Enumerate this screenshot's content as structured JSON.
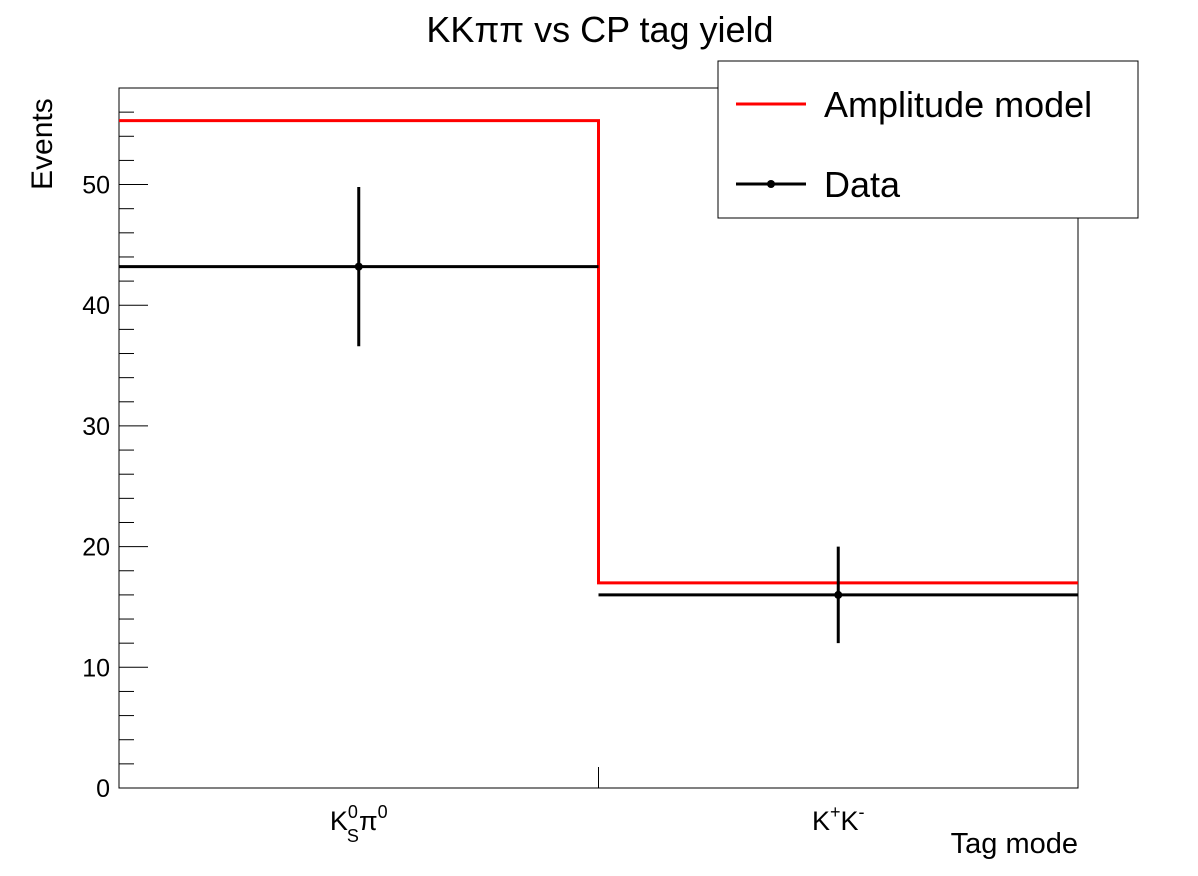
{
  "chart_data": {
    "type": "bar",
    "title": "KKππ vs CP tag yield",
    "xlabel": "Tag mode",
    "ylabel": "Events",
    "categories": [
      {
        "main": "K",
        "sub": "S",
        "sup": "0",
        "rest_main": "π",
        "rest_sup": "0"
      },
      {
        "main": "K",
        "sup": "+",
        "rest_main": "K",
        "rest_sup": "-"
      }
    ],
    "ylim": [
      0,
      58
    ],
    "yticks": [
      0,
      10,
      20,
      30,
      40,
      50
    ],
    "series": [
      {
        "name": "Amplitude model",
        "style": "histogram",
        "color": "#ff0000",
        "values": [
          55.3,
          17.0
        ]
      },
      {
        "name": "Data",
        "style": "points-with-errors",
        "color": "#000000",
        "values": [
          43.2,
          16.0
        ],
        "errors": [
          6.6,
          4.0
        ]
      }
    ],
    "legend": {
      "placement": "top-right"
    },
    "grid": false
  }
}
